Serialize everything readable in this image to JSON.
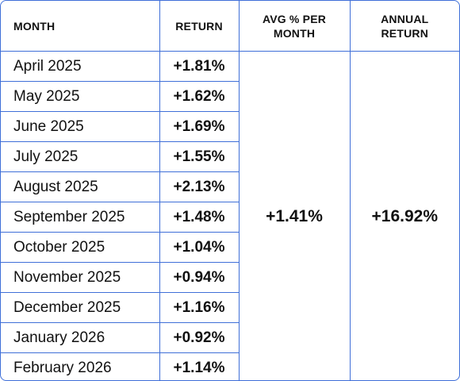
{
  "table": {
    "headers": {
      "month": "MONTH",
      "return": "RETURN",
      "avg_per_month": "AVG % PER MONTH",
      "annual_return": "ANNUAL RETURN"
    },
    "rows": [
      {
        "month": "April 2025",
        "return": "+1.81%"
      },
      {
        "month": "May 2025",
        "return": "+1.62%"
      },
      {
        "month": "June 2025",
        "return": "+1.69%"
      },
      {
        "month": "July 2025",
        "return": "+1.55%"
      },
      {
        "month": "August 2025",
        "return": "+2.13%"
      },
      {
        "month": "September 2025",
        "return": "+1.48%"
      },
      {
        "month": "October 2025",
        "return": "+1.04%"
      },
      {
        "month": "November 2025",
        "return": "+0.94%"
      },
      {
        "month": "December 2025",
        "return": "+1.16%"
      },
      {
        "month": "January 2026",
        "return": "+0.92%"
      },
      {
        "month": "February 2026",
        "return": "+1.14%"
      }
    ],
    "avg_per_month": "+1.41%",
    "annual_return": "+16.92%"
  },
  "colors": {
    "border": "#3f6fd8",
    "text": "#111111",
    "background": "#ffffff"
  }
}
